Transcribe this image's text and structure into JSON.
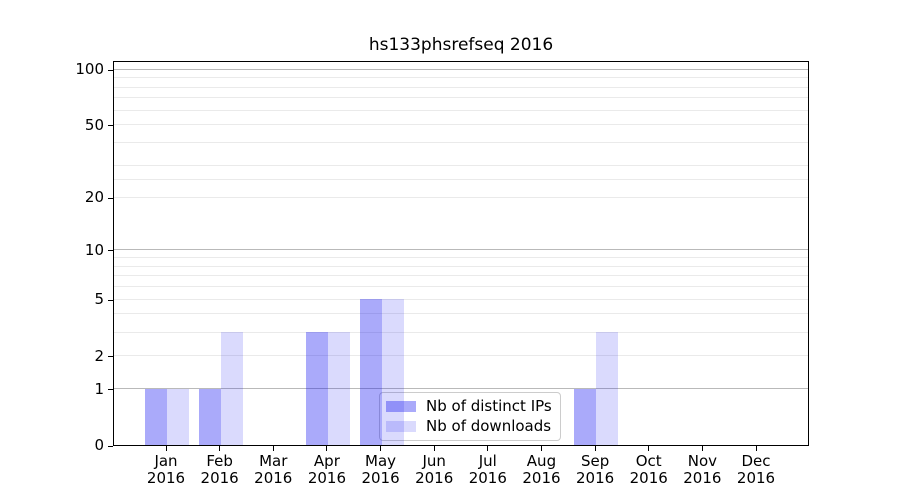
{
  "title": "hs133phsrefseq 2016",
  "legend": {
    "items": [
      {
        "label": "Nb of distinct IPs",
        "color": "rgba(5,5,240,0.34)"
      },
      {
        "label": "Nb of downloads",
        "color": "rgba(5,5,240,0.15)"
      }
    ]
  },
  "chart_data": {
    "type": "bar",
    "title": "hs133phsrefseq 2016",
    "x_categories": [
      {
        "line1": "Jan",
        "line2": "2016"
      },
      {
        "line1": "Feb",
        "line2": "2016"
      },
      {
        "line1": "Mar",
        "line2": "2016"
      },
      {
        "line1": "Apr",
        "line2": "2016"
      },
      {
        "line1": "May",
        "line2": "2016"
      },
      {
        "line1": "Jun",
        "line2": "2016"
      },
      {
        "line1": "Jul",
        "line2": "2016"
      },
      {
        "line1": "Aug",
        "line2": "2016"
      },
      {
        "line1": "Sep",
        "line2": "2016"
      },
      {
        "line1": "Oct",
        "line2": "2016"
      },
      {
        "line1": "Nov",
        "line2": "2016"
      },
      {
        "line1": "Dec",
        "line2": "2016"
      }
    ],
    "series": [
      {
        "name": "Nb of distinct IPs",
        "values": [
          1,
          1,
          0,
          3,
          5,
          0,
          0,
          0,
          1,
          0,
          0,
          0
        ]
      },
      {
        "name": "Nb of downloads",
        "values": [
          1,
          3,
          0,
          3,
          5,
          0,
          0,
          0,
          3,
          0,
          0,
          0
        ]
      }
    ],
    "xlabel": "",
    "ylabel": "",
    "yscale": "log10(1+x)",
    "yticks": [
      0,
      1,
      2,
      5,
      10,
      20,
      50,
      100
    ],
    "ymax": 112,
    "grid_major": [
      1,
      10,
      100
    ],
    "grid_minor": [
      2,
      3,
      4,
      5,
      6,
      7,
      8,
      9,
      20,
      25,
      30,
      40,
      50,
      60,
      70,
      80,
      90
    ],
    "legend_position": "lower center, inside axes",
    "grid": "on"
  },
  "colors": {
    "bar_distinct_ips": "rgba(5,5,240,0.34)",
    "bar_downloads": "rgba(5,5,240,0.15)",
    "grid_major": "#b9b9b9",
    "grid_minor": "#eaeaea",
    "axis": "#000000",
    "text": "#000000",
    "legend_border": "#cccccc",
    "legend_bg": "rgba(255,255,255,0.8)"
  }
}
